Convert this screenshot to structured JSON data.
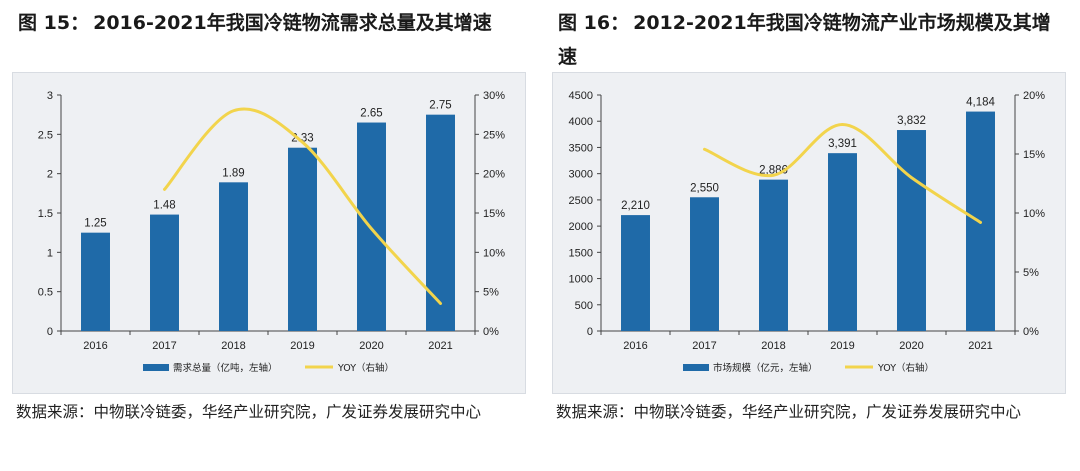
{
  "charts": [
    {
      "id": "left",
      "figure_label": "图",
      "figure_number": "15：",
      "title_text": "2016-2021年我国冷链物流需求总量及其增速",
      "source_label": "数据来源：",
      "source_text": "中物联冷链委，华经产业研究院，广发证券发展研究中心",
      "legend": {
        "bar": "需求总量（亿吨，左轴）",
        "line": "YOY（右轴）"
      },
      "colors": {
        "bar": "#1f6aa8",
        "line": "#f2d44c"
      }
    },
    {
      "id": "right",
      "figure_label": "图",
      "figure_number": "16：",
      "title_text": "2012-2021年我国冷链物流产业市场规模及其增速",
      "source_label": "数据来源：",
      "source_text": "中物联冷链委，华经产业研究院，广发证券发展研究中心",
      "legend": {
        "bar": "市场规模（亿元，左轴）",
        "line": "YOY（右轴）"
      },
      "colors": {
        "bar": "#1f6aa8",
        "line": "#f2d44c"
      }
    }
  ],
  "chart_data": [
    {
      "type": "bar",
      "title": "2016-2021年我国冷链物流需求总量及其增速",
      "categories": [
        "2016",
        "2017",
        "2018",
        "2019",
        "2020",
        "2021"
      ],
      "series": [
        {
          "name": "需求总量（亿吨，左轴）",
          "type": "bar",
          "axis": "left",
          "values": [
            1.25,
            1.48,
            1.89,
            2.33,
            2.65,
            2.75
          ],
          "labels": [
            "1.25",
            "1.48",
            "1.89",
            "2.33",
            "2.65",
            "2.75"
          ]
        },
        {
          "name": "YOY（右轴）",
          "type": "line",
          "axis": "right",
          "smooth": true,
          "values": [
            null,
            18.0,
            28.0,
            24.0,
            13.0,
            3.5
          ]
        }
      ],
      "left_axis": {
        "min": 0,
        "max": 3,
        "ticks": [
          0,
          0.5,
          1,
          1.5,
          2,
          2.5,
          3
        ],
        "tick_labels": [
          "0",
          "0.5",
          "1",
          "1.5",
          "2",
          "2.5",
          "3"
        ]
      },
      "right_axis": {
        "min": 0,
        "max": 30,
        "ticks": [
          0,
          5,
          10,
          15,
          20,
          25,
          30
        ],
        "tick_labels": [
          "0%",
          "5%",
          "10%",
          "15%",
          "20%",
          "25%",
          "30%"
        ]
      },
      "legend_position": "bottom"
    },
    {
      "type": "bar",
      "title": "2012-2021年我国冷链物流产业市场规模及其增速",
      "categories": [
        "2016",
        "2017",
        "2018",
        "2019",
        "2020",
        "2021"
      ],
      "series": [
        {
          "name": "市场规模（亿元，左轴）",
          "type": "bar",
          "axis": "left",
          "values": [
            2210,
            2550,
            2886,
            3391,
            3832,
            4184
          ],
          "labels": [
            "2,210",
            "2,550",
            "2,886",
            "3,391",
            "3,832",
            "4,184"
          ]
        },
        {
          "name": "YOY（右轴）",
          "type": "line",
          "axis": "right",
          "smooth": true,
          "values": [
            null,
            15.4,
            13.2,
            17.5,
            13.0,
            9.2
          ]
        }
      ],
      "left_axis": {
        "min": 0,
        "max": 4500,
        "ticks": [
          0,
          500,
          1000,
          1500,
          2000,
          2500,
          3000,
          3500,
          4000,
          4500
        ],
        "tick_labels": [
          "0",
          "500",
          "1000",
          "1500",
          "2000",
          "2500",
          "3000",
          "3500",
          "4000",
          "4500"
        ]
      },
      "right_axis": {
        "min": 0,
        "max": 20,
        "ticks": [
          0,
          5,
          10,
          15,
          20
        ],
        "tick_labels": [
          "0%",
          "5%",
          "10%",
          "15%",
          "20%"
        ]
      },
      "legend_position": "bottom"
    }
  ]
}
